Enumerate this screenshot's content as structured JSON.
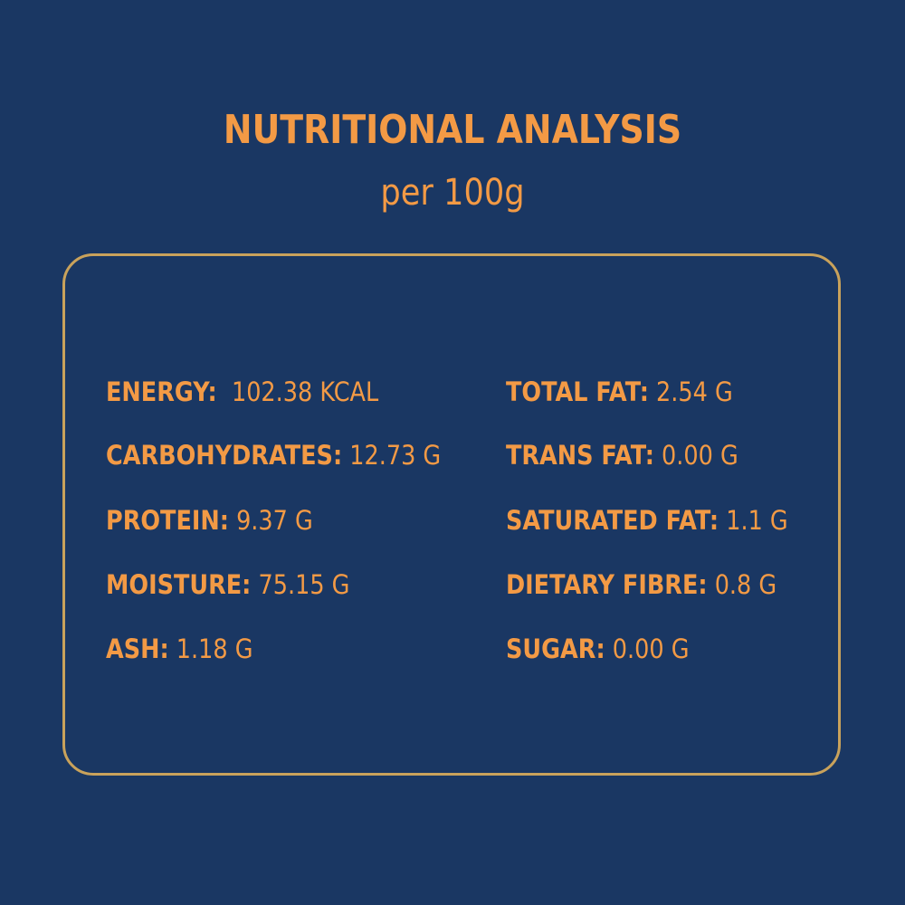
{
  "header": {
    "title": "NUTRITIONAL ANALYSIS",
    "subtitle": "per 100g"
  },
  "colors": {
    "background": "#1a3763",
    "accent": "#f39a45",
    "border": "#c9a25b"
  },
  "nutrients": {
    "left": [
      {
        "label": "ENERGY:",
        "value": "102.38 KCAL"
      },
      {
        "label": "CARBOHYDRATES:",
        "value": "12.73 G"
      },
      {
        "label": "PROTEIN:",
        "value": "9.37 G"
      },
      {
        "label": "MOISTURE:",
        "value": "75.15 G"
      },
      {
        "label": "ASH:",
        "value": "1.18 G"
      }
    ],
    "right": [
      {
        "label": "TOTAL FAT:",
        "value": "2.54 G"
      },
      {
        "label": "TRANS FAT:",
        "value": "0.00 G"
      },
      {
        "label": "SATURATED FAT:",
        "value": "1.1 G"
      },
      {
        "label": "DIETARY FIBRE:",
        "value": "0.8 G"
      },
      {
        "label": "SUGAR:",
        "value": "0.00 G"
      }
    ]
  }
}
